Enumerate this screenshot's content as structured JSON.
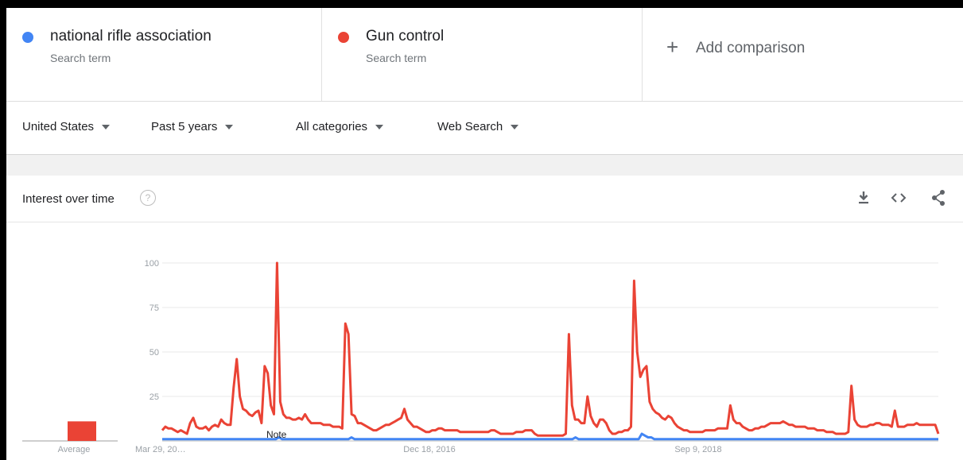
{
  "terms": [
    {
      "name": "national rifle association",
      "sub": "Search term",
      "color": "#4285f4"
    },
    {
      "name": "Gun control",
      "sub": "Search term",
      "color": "#ea4335"
    }
  ],
  "add_comparison": {
    "label": "Add comparison"
  },
  "filters": {
    "region": "United States",
    "time": "Past 5 years",
    "category": "All categories",
    "search_type": "Web Search"
  },
  "card": {
    "title": "Interest over time",
    "help_glyph": "?",
    "icons": [
      "download-icon",
      "embed-icon",
      "share-icon"
    ]
  },
  "chart_data": {
    "type": "line",
    "ylim": [
      0,
      100
    ],
    "yticks": [
      25,
      50,
      75,
      100
    ],
    "x_tick_labels": [
      "Mar 29, 20…",
      "Dec 18, 2016",
      "Sep 9, 2018"
    ],
    "average_label": "Average",
    "average_bar_value": 11,
    "note_label": "Note",
    "series": [
      {
        "name": "Gun control",
        "color": "#ea4335",
        "values": [
          6,
          8,
          7,
          7,
          6,
          5,
          6,
          5,
          4,
          10,
          13,
          8,
          7,
          7,
          8,
          6,
          8,
          9,
          8,
          12,
          10,
          9,
          9,
          30,
          46,
          25,
          18,
          17,
          15,
          14,
          16,
          17,
          10,
          42,
          38,
          20,
          15,
          100,
          22,
          15,
          13,
          13,
          12,
          12,
          13,
          12,
          15,
          12,
          10,
          10,
          10,
          10,
          9,
          9,
          9,
          8,
          8,
          8,
          7,
          66,
          60,
          15,
          14,
          10,
          10,
          9,
          8,
          7,
          6,
          6,
          7,
          8,
          9,
          9,
          10,
          11,
          12,
          13,
          18,
          12,
          10,
          8,
          8,
          7,
          6,
          5,
          5,
          6,
          6,
          7,
          7,
          6,
          6,
          6,
          6,
          6,
          5,
          5,
          5,
          5,
          5,
          5,
          5,
          5,
          5,
          5,
          6,
          6,
          5,
          4,
          4,
          4,
          4,
          4,
          5,
          5,
          5,
          6,
          6,
          6,
          4,
          3,
          3,
          3,
          3,
          3,
          3,
          3,
          3,
          3,
          4,
          60,
          20,
          12,
          12,
          10,
          10,
          25,
          14,
          10,
          8,
          12,
          12,
          10,
          6,
          4,
          4,
          5,
          5,
          6,
          6,
          8,
          90,
          50,
          36,
          40,
          42,
          22,
          18,
          16,
          15,
          13,
          12,
          14,
          13,
          10,
          8,
          7,
          6,
          6,
          5,
          5,
          5,
          5,
          5,
          6,
          6,
          6,
          6,
          7,
          7,
          7,
          7,
          20,
          12,
          10,
          10,
          8,
          7,
          6,
          6,
          7,
          7,
          8,
          8,
          9,
          10,
          10,
          10,
          10,
          11,
          10,
          9,
          9,
          8,
          8,
          8,
          8,
          7,
          7,
          7,
          6,
          6,
          6,
          5,
          5,
          5,
          4,
          4,
          4,
          4,
          5,
          31,
          12,
          9,
          8,
          8,
          8,
          9,
          9,
          10,
          10,
          9,
          9,
          9,
          8,
          17,
          8,
          8,
          8,
          9,
          9,
          9,
          10,
          9,
          9,
          9,
          9,
          9,
          9,
          4
        ]
      },
      {
        "name": "national rifle association",
        "color": "#4285f4",
        "values": [
          1,
          1,
          1,
          1,
          1,
          1,
          1,
          1,
          1,
          1,
          1,
          1,
          1,
          1,
          1,
          1,
          1,
          1,
          1,
          1,
          1,
          1,
          1,
          1,
          1,
          1,
          1,
          1,
          1,
          1,
          1,
          1,
          1,
          1,
          1,
          1,
          1,
          2,
          1,
          1,
          1,
          1,
          1,
          1,
          1,
          1,
          1,
          1,
          1,
          1,
          1,
          1,
          1,
          1,
          1,
          1,
          1,
          1,
          1,
          1,
          2,
          1,
          1,
          1,
          1,
          1,
          1,
          1,
          1,
          1,
          1,
          1,
          1,
          1,
          1,
          1,
          1,
          1,
          1,
          1,
          1,
          1,
          1,
          1,
          1,
          1,
          1,
          1,
          1,
          1,
          1,
          1,
          1,
          1,
          1,
          1,
          1,
          1,
          1,
          1,
          1,
          1,
          1,
          1,
          1,
          1,
          1,
          1,
          1,
          1,
          1,
          1,
          1,
          1,
          1,
          1,
          1,
          1,
          1,
          1,
          1,
          1,
          1,
          1,
          1,
          1,
          1,
          1,
          1,
          1,
          1,
          2,
          1,
          1,
          1,
          1,
          1,
          1,
          1,
          1,
          1,
          1,
          1,
          1,
          1,
          1,
          1,
          1,
          1,
          1,
          1,
          1,
          4,
          3,
          2,
          2,
          1,
          1,
          1,
          1,
          1,
          1,
          1,
          1,
          1,
          1,
          1,
          1,
          1,
          1,
          1,
          1,
          1,
          1,
          1,
          1,
          1,
          1,
          1,
          1,
          1,
          1,
          1,
          1,
          1,
          1,
          1,
          1,
          1,
          1,
          1,
          1,
          1,
          1,
          1,
          1,
          1,
          1,
          1,
          1,
          1,
          1,
          1,
          1,
          1,
          1,
          1,
          1,
          1,
          1,
          1,
          1,
          1,
          1,
          1,
          1,
          1,
          1,
          1,
          1,
          1,
          1,
          1,
          1,
          1,
          1,
          1,
          1,
          1,
          1,
          1,
          1,
          1,
          1,
          1,
          1,
          1,
          1,
          1,
          1,
          1,
          1,
          1,
          1,
          1,
          1,
          1
        ]
      }
    ]
  }
}
